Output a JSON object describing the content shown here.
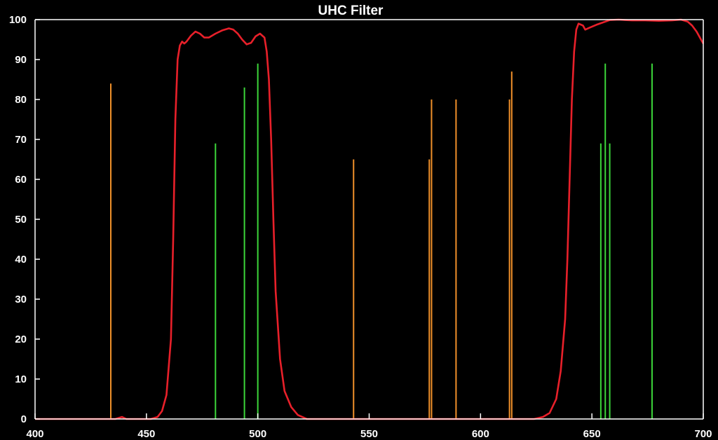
{
  "chart_data": {
    "type": "line",
    "title": "UHC Filter",
    "xlabel": "",
    "ylabel": "",
    "xlim": [
      400,
      700
    ],
    "ylim": [
      0,
      100
    ],
    "x_ticks": [
      400,
      450,
      500,
      550,
      600,
      650,
      700
    ],
    "y_ticks": [
      0,
      10,
      20,
      30,
      40,
      50,
      60,
      70,
      80,
      90,
      100
    ],
    "background": "#000000",
    "axis_color": "#ffffff",
    "grid": false,
    "series": [
      {
        "kind": "transmission-curve",
        "color": "#e8202a",
        "points": [
          [
            400,
            0
          ],
          [
            436,
            0
          ],
          [
            439,
            0.5
          ],
          [
            441,
            0
          ],
          [
            452,
            0
          ],
          [
            455,
            0.5
          ],
          [
            457,
            2
          ],
          [
            459,
            6
          ],
          [
            461,
            20
          ],
          [
            462,
            45
          ],
          [
            463,
            75
          ],
          [
            464,
            90
          ],
          [
            465,
            93.5
          ],
          [
            466,
            94.5
          ],
          [
            467,
            94
          ],
          [
            468,
            94.5
          ],
          [
            470,
            96
          ],
          [
            472,
            97
          ],
          [
            474,
            96.5
          ],
          [
            476,
            95.5
          ],
          [
            478,
            95.5
          ],
          [
            481,
            96.5
          ],
          [
            484,
            97.3
          ],
          [
            487,
            97.8
          ],
          [
            489,
            97.5
          ],
          [
            491,
            96.5
          ],
          [
            493,
            95
          ],
          [
            495,
            93.8
          ],
          [
            497,
            94.2
          ],
          [
            499,
            95.8
          ],
          [
            501,
            96.5
          ],
          [
            503,
            95.5
          ],
          [
            504,
            92
          ],
          [
            505,
            85
          ],
          [
            506,
            70
          ],
          [
            507,
            50
          ],
          [
            508,
            32
          ],
          [
            510,
            15
          ],
          [
            512,
            7
          ],
          [
            515,
            3
          ],
          [
            518,
            1
          ],
          [
            522,
            0
          ],
          [
            624,
            0
          ],
          [
            628,
            0.5
          ],
          [
            631,
            1.5
          ],
          [
            634,
            5
          ],
          [
            636,
            12
          ],
          [
            638,
            25
          ],
          [
            639,
            40
          ],
          [
            640,
            60
          ],
          [
            641,
            80
          ],
          [
            642,
            92
          ],
          [
            643,
            97.5
          ],
          [
            644,
            99
          ],
          [
            646,
            98.5
          ],
          [
            647,
            97.5
          ],
          [
            649,
            98
          ],
          [
            652,
            98.7
          ],
          [
            655,
            99.3
          ],
          [
            658,
            99.9
          ],
          [
            662,
            100
          ],
          [
            668,
            99.8
          ],
          [
            674,
            99.8
          ],
          [
            680,
            99.7
          ],
          [
            686,
            99.8
          ],
          [
            690,
            100
          ],
          [
            693,
            99.5
          ],
          [
            695,
            98.5
          ],
          [
            697,
            97
          ],
          [
            699,
            95
          ],
          [
            700,
            94
          ]
        ]
      }
    ],
    "emission_lines": [
      {
        "x": 434,
        "y": 84,
        "color": "#f0902a"
      },
      {
        "x": 481,
        "y": 69,
        "color": "#3cd63a"
      },
      {
        "x": 494,
        "y": 83,
        "color": "#3cd63a"
      },
      {
        "x": 500,
        "y": 89,
        "color": "#3cd63a"
      },
      {
        "x": 543,
        "y": 65,
        "color": "#f0902a"
      },
      {
        "x": 577,
        "y": 65,
        "color": "#f0902a"
      },
      {
        "x": 578,
        "y": 80,
        "color": "#f0902a"
      },
      {
        "x": 589,
        "y": 80,
        "color": "#f0902a"
      },
      {
        "x": 613,
        "y": 80,
        "color": "#f0902a"
      },
      {
        "x": 614,
        "y": 87,
        "color": "#f0902a"
      },
      {
        "x": 654,
        "y": 69,
        "color": "#3cd63a"
      },
      {
        "x": 656,
        "y": 89,
        "color": "#3cd63a"
      },
      {
        "x": 658,
        "y": 69,
        "color": "#3cd63a"
      },
      {
        "x": 677,
        "y": 89,
        "color": "#3cd63a"
      }
    ]
  }
}
